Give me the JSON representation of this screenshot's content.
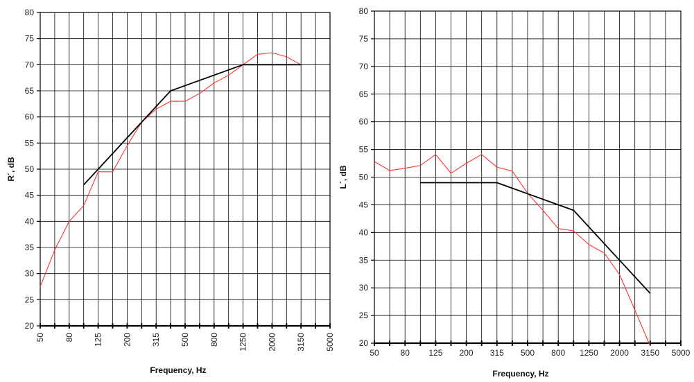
{
  "chart_data": [
    {
      "type": "line",
      "xlabel": "Frequency, Hz",
      "ylabel": "R´, dB",
      "ylim": [
        20,
        80
      ],
      "yticks": [
        "20",
        "25",
        "30",
        "35",
        "40",
        "45",
        "50",
        "55",
        "60",
        "65",
        "70",
        "75",
        "80"
      ],
      "x_positions": [
        "50",
        "63",
        "80",
        "100",
        "125",
        "160",
        "200",
        "250",
        "315",
        "400",
        "500",
        "630",
        "800",
        "1000",
        "1250",
        "1600",
        "2000",
        "2500",
        "3150",
        "4000",
        "5000"
      ],
      "xtick_labels": [
        "50",
        "80",
        "125",
        "200",
        "315",
        "500",
        "800",
        "1250",
        "2000",
        "3150",
        "5000"
      ],
      "grid": true,
      "series": [
        {
          "color": "#ff3333",
          "x": [
            "50",
            "63",
            "80",
            "100",
            "125",
            "160",
            "200",
            "250",
            "315",
            "400",
            "500",
            "630",
            "800",
            "1000",
            "1250",
            "1600",
            "2000",
            "2500",
            "3150"
          ],
          "values": [
            27.5,
            34.5,
            40,
            43,
            49.5,
            49.5,
            54.5,
            59,
            61.5,
            63,
            63,
            64.5,
            66.5,
            68,
            70,
            72,
            72.3,
            71.5,
            70
          ]
        },
        {
          "color": "#000000",
          "x": [
            "100",
            "400",
            "1250",
            "3150"
          ],
          "values": [
            47,
            65,
            70,
            70
          ]
        }
      ]
    },
    {
      "type": "line",
      "xlabel": "Frequency, Hz",
      "ylabel": "L´, dB",
      "ylim": [
        20,
        80
      ],
      "yticks": [
        "20",
        "25",
        "30",
        "35",
        "40",
        "45",
        "50",
        "55",
        "60",
        "65",
        "70",
        "75",
        "80"
      ],
      "x_positions": [
        "50",
        "63",
        "80",
        "100",
        "125",
        "160",
        "200",
        "250",
        "315",
        "400",
        "500",
        "630",
        "800",
        "1000",
        "1250",
        "1600",
        "2000",
        "2500",
        "3150",
        "4000",
        "5000"
      ],
      "xtick_labels": [
        "50",
        "80",
        "125",
        "200",
        "315",
        "500",
        "800",
        "1250",
        "2000",
        "3150",
        "5000"
      ],
      "grid": true,
      "series": [
        {
          "color": "#ff3333",
          "x": [
            "50",
            "63",
            "80",
            "100",
            "125",
            "160",
            "200",
            "250",
            "315",
            "400",
            "500",
            "630",
            "800",
            "1000",
            "1250",
            "1600",
            "2000",
            "2500",
            "3150"
          ],
          "values": [
            52.8,
            51.2,
            51.6,
            52.1,
            54.1,
            50.7,
            52.5,
            54.1,
            51.8,
            51.1,
            47.1,
            44,
            40.7,
            40.3,
            37.8,
            36.3,
            32.4,
            26,
            19.5
          ]
        },
        {
          "color": "#000000",
          "x": [
            "100",
            "315",
            "1000",
            "2000",
            "3150"
          ],
          "values": [
            49,
            49,
            44,
            35,
            29
          ]
        }
      ]
    }
  ]
}
